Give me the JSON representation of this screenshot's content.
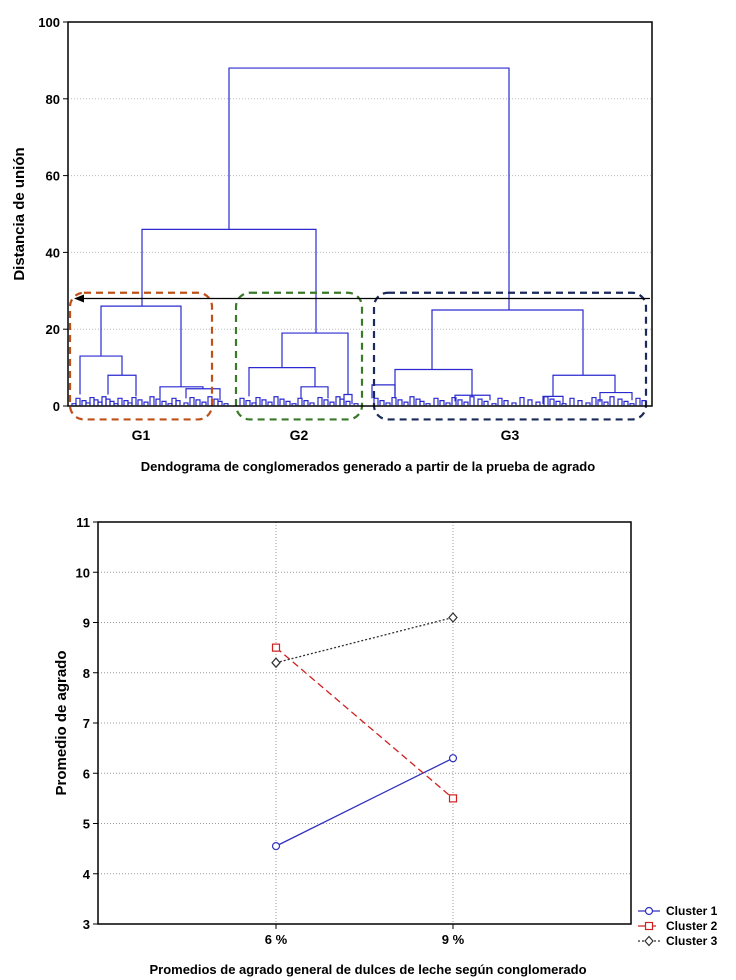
{
  "chart_data": [
    {
      "type": "dendrogram",
      "ylabel": "Distancia de unión",
      "caption": "Dendograma de conglomerados generado a partir de la prueba de agrado",
      "ylim": [
        0,
        100
      ],
      "yticks": [
        "0",
        "20",
        "40",
        "60",
        "80",
        "100"
      ],
      "grid": true,
      "cut_height": 28,
      "groups": [
        {
          "label": "G1",
          "color": "#c0501a"
        },
        {
          "label": "G2",
          "color": "#3a7a2a"
        },
        {
          "label": "G3",
          "color": "#1a2a5a"
        }
      ],
      "merges": [
        {
          "name": "G1+G2",
          "height": 46
        },
        {
          "name": "root",
          "height": 88
        },
        {
          "name": "G1",
          "height": 26
        },
        {
          "name": "G2",
          "height": 19
        },
        {
          "name": "G3",
          "height": 25
        }
      ]
    },
    {
      "type": "line",
      "ylabel": "Promedio de agrado",
      "caption": "Promedios de agrado general de dulces de leche según conglomerado",
      "categories": [
        "6 %",
        "9 %"
      ],
      "ylim": [
        3,
        11
      ],
      "yticks": [
        "3",
        "4",
        "5",
        "6",
        "7",
        "8",
        "9",
        "10",
        "11"
      ],
      "grid": true,
      "legend_position": "bottom-right",
      "series": [
        {
          "name": "Cluster 1",
          "values": [
            4.55,
            6.3
          ],
          "color": "#3030c0",
          "marker": "circle",
          "dash": "solid"
        },
        {
          "name": "Cluster 2",
          "values": [
            8.5,
            5.5
          ],
          "color": "#d02020",
          "marker": "square",
          "dash": "dashed"
        },
        {
          "name": "Cluster 3",
          "values": [
            8.2,
            9.1
          ],
          "color": "#303030",
          "marker": "diamond",
          "dash": "dotted"
        }
      ]
    }
  ]
}
